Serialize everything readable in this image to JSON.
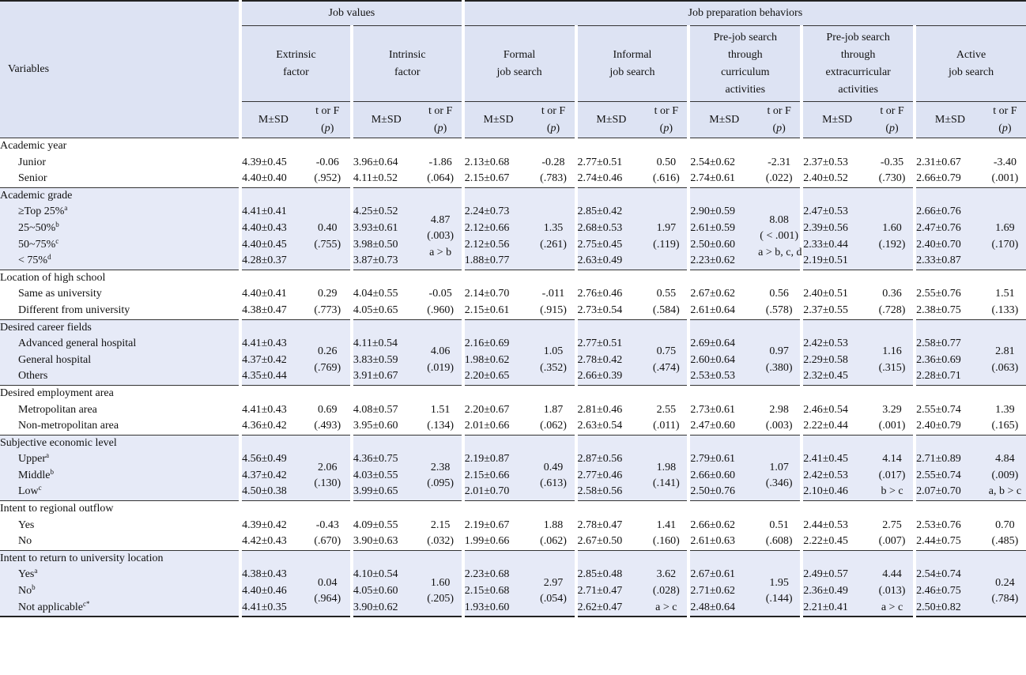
{
  "header": {
    "variables_label": "Variables",
    "group_job_values": "Job values",
    "group_job_prep": "Job preparation behaviors",
    "columns": [
      {
        "id": "extrinsic",
        "lines": [
          "Extrinsic",
          "factor"
        ]
      },
      {
        "id": "intrinsic",
        "lines": [
          "Intrinsic",
          "factor"
        ]
      },
      {
        "id": "formal",
        "lines": [
          "Formal",
          "job search"
        ]
      },
      {
        "id": "informal",
        "lines": [
          "Informal",
          "job search"
        ]
      },
      {
        "id": "prejob_curr",
        "lines": [
          "Pre-job search",
          "through",
          "curriculum",
          "activities"
        ]
      },
      {
        "id": "prejob_extra",
        "lines": [
          "Pre-job search",
          "through",
          "extracurricular",
          "activities"
        ]
      },
      {
        "id": "active",
        "lines": [
          "Active",
          "job search"
        ]
      }
    ],
    "msd_label": "M±SD",
    "tf_label": "t or F",
    "p_open": "(",
    "p_label": "p",
    "p_close": ")"
  },
  "groups": [
    {
      "title": "Academic year",
      "items": [
        "Junior",
        "Senior"
      ],
      "sups": [
        "",
        ""
      ],
      "cols": [
        {
          "msd": [
            "4.39±0.45",
            "4.40±0.40"
          ],
          "tf": [
            "-0.06",
            "(.952)"
          ]
        },
        {
          "msd": [
            "3.96±0.64",
            "4.11±0.52"
          ],
          "tf": [
            "-1.86",
            "(.064)"
          ]
        },
        {
          "msd": [
            "2.13±0.68",
            "2.15±0.67"
          ],
          "tf": [
            "-0.28",
            "(.783)"
          ]
        },
        {
          "msd": [
            "2.77±0.51",
            "2.74±0.46"
          ],
          "tf": [
            "0.50",
            "(.616)"
          ]
        },
        {
          "msd": [
            "2.54±0.62",
            "2.74±0.61"
          ],
          "tf": [
            "-2.31",
            "(.022)"
          ]
        },
        {
          "msd": [
            "2.37±0.53",
            "2.40±0.52"
          ],
          "tf": [
            "-0.35",
            "(.730)"
          ]
        },
        {
          "msd": [
            "2.31±0.67",
            "2.66±0.79"
          ],
          "tf": [
            "-3.40",
            "(.001)"
          ]
        }
      ]
    },
    {
      "title": "Academic grade",
      "items": [
        "≥Top 25%",
        "25~50%",
        "50~75%",
        "< 75%"
      ],
      "sups": [
        "a",
        "b",
        "c",
        "d"
      ],
      "cols": [
        {
          "msd": [
            "4.41±0.41",
            "4.40±0.43",
            "4.40±0.45",
            "4.28±0.37"
          ],
          "tf": [
            "0.40",
            "(.755)"
          ]
        },
        {
          "msd": [
            "4.25±0.52",
            "3.93±0.61",
            "3.98±0.50",
            "3.87±0.73"
          ],
          "tf": [
            "4.87",
            "(.003)",
            "a > b"
          ]
        },
        {
          "msd": [
            "2.24±0.73",
            "2.12±0.66",
            "2.12±0.56",
            "1.88±0.77"
          ],
          "tf": [
            "1.35",
            "(.261)"
          ]
        },
        {
          "msd": [
            "2.85±0.42",
            "2.68±0.53",
            "2.75±0.45",
            "2.63±0.49"
          ],
          "tf": [
            "1.97",
            "(.119)"
          ]
        },
        {
          "msd": [
            "2.90±0.59",
            "2.61±0.59",
            "2.50±0.60",
            "2.23±0.62"
          ],
          "tf": [
            "8.08",
            "( < .001)",
            "a > b, c, d"
          ]
        },
        {
          "msd": [
            "2.47±0.53",
            "2.39±0.56",
            "2.33±0.44",
            "2.19±0.51"
          ],
          "tf": [
            "1.60",
            "(.192)"
          ]
        },
        {
          "msd": [
            "2.66±0.76",
            "2.47±0.76",
            "2.40±0.70",
            "2.33±0.87"
          ],
          "tf": [
            "1.69",
            "(.170)"
          ]
        }
      ]
    },
    {
      "title": "Location of high school",
      "items": [
        "Same as university",
        "Different from university"
      ],
      "sups": [
        "",
        ""
      ],
      "cols": [
        {
          "msd": [
            "4.40±0.41",
            "4.38±0.47"
          ],
          "tf": [
            "0.29",
            "(.773)"
          ]
        },
        {
          "msd": [
            "4.04±0.55",
            "4.05±0.65"
          ],
          "tf": [
            "-0.05",
            "(.960)"
          ]
        },
        {
          "msd": [
            "2.14±0.70",
            "2.15±0.61"
          ],
          "tf": [
            "-.011",
            "(.915)"
          ]
        },
        {
          "msd": [
            "2.76±0.46",
            "2.73±0.54"
          ],
          "tf": [
            "0.55",
            "(.584)"
          ]
        },
        {
          "msd": [
            "2.67±0.62",
            "2.61±0.64"
          ],
          "tf": [
            "0.56",
            "(.578)"
          ]
        },
        {
          "msd": [
            "2.40±0.51",
            "2.37±0.55"
          ],
          "tf": [
            "0.36",
            "(.728)"
          ]
        },
        {
          "msd": [
            "2.55±0.76",
            "2.38±0.75"
          ],
          "tf": [
            "1.51",
            "(.133)"
          ]
        }
      ]
    },
    {
      "title": "Desired career fields",
      "items": [
        "Advanced general hospital",
        "General hospital",
        "Others"
      ],
      "sups": [
        "",
        "",
        ""
      ],
      "cols": [
        {
          "msd": [
            "4.41±0.43",
            "4.37±0.42",
            "4.35±0.44"
          ],
          "tf": [
            "0.26",
            "(.769)"
          ]
        },
        {
          "msd": [
            "4.11±0.54",
            "3.83±0.59",
            "3.91±0.67"
          ],
          "tf": [
            "4.06",
            "(.019)"
          ]
        },
        {
          "msd": [
            "2.16±0.69",
            "1.98±0.62",
            "2.20±0.65"
          ],
          "tf": [
            "1.05",
            "(.352)"
          ]
        },
        {
          "msd": [
            "2.77±0.51",
            "2.78±0.42",
            "2.66±0.39"
          ],
          "tf": [
            "0.75",
            "(.474)"
          ]
        },
        {
          "msd": [
            "2.69±0.64",
            "2.60±0.64",
            "2.53±0.53"
          ],
          "tf": [
            "0.97",
            "(.380)"
          ]
        },
        {
          "msd": [
            "2.42±0.53",
            "2.29±0.58",
            "2.32±0.45"
          ],
          "tf": [
            "1.16",
            "(.315)"
          ]
        },
        {
          "msd": [
            "2.58±0.77",
            "2.36±0.69",
            "2.28±0.71"
          ],
          "tf": [
            "2.81",
            "(.063)"
          ]
        }
      ]
    },
    {
      "title": "Desired employment area",
      "items": [
        "Metropolitan area",
        "Non-metropolitan area"
      ],
      "sups": [
        "",
        ""
      ],
      "cols": [
        {
          "msd": [
            "4.41±0.43",
            "4.36±0.42"
          ],
          "tf": [
            "0.69",
            "(.493)"
          ]
        },
        {
          "msd": [
            "4.08±0.57",
            "3.95±0.60"
          ],
          "tf": [
            "1.51",
            "(.134)"
          ]
        },
        {
          "msd": [
            "2.20±0.67",
            "2.01±0.66"
          ],
          "tf": [
            "1.87",
            "(.062)"
          ]
        },
        {
          "msd": [
            "2.81±0.46",
            "2.63±0.54"
          ],
          "tf": [
            "2.55",
            "(.011)"
          ]
        },
        {
          "msd": [
            "2.73±0.61",
            "2.47±0.60"
          ],
          "tf": [
            "2.98",
            "(.003)"
          ]
        },
        {
          "msd": [
            "2.46±0.54",
            "2.22±0.44"
          ],
          "tf": [
            "3.29",
            "(.001)"
          ]
        },
        {
          "msd": [
            "2.55±0.74",
            "2.40±0.79"
          ],
          "tf": [
            "1.39",
            "(.165)"
          ]
        }
      ]
    },
    {
      "title": "Subjective economic level",
      "items": [
        "Upper",
        "Middle",
        "Low"
      ],
      "sups": [
        "a",
        "b",
        "c"
      ],
      "cols": [
        {
          "msd": [
            "4.56±0.49",
            "4.37±0.42",
            "4.50±0.38"
          ],
          "tf": [
            "2.06",
            "(.130)"
          ]
        },
        {
          "msd": [
            "4.36±0.75",
            "4.03±0.55",
            "3.99±0.65"
          ],
          "tf": [
            "2.38",
            "(.095)"
          ]
        },
        {
          "msd": [
            "2.19±0.87",
            "2.15±0.66",
            "2.01±0.70"
          ],
          "tf": [
            "0.49",
            "(.613)"
          ]
        },
        {
          "msd": [
            "2.87±0.56",
            "2.77±0.46",
            "2.58±0.56"
          ],
          "tf": [
            "1.98",
            "(.141)"
          ]
        },
        {
          "msd": [
            "2.79±0.61",
            "2.66±0.60",
            "2.50±0.76"
          ],
          "tf": [
            "1.07",
            "(.346)"
          ]
        },
        {
          "msd": [
            "2.41±0.45",
            "2.42±0.53",
            "2.10±0.46"
          ],
          "tf": [
            "4.14",
            "(.017)",
            "b > c"
          ]
        },
        {
          "msd": [
            "2.71±0.89",
            "2.55±0.74",
            "2.07±0.70"
          ],
          "tf": [
            "4.84",
            "(.009)",
            "a, b > c"
          ]
        }
      ]
    },
    {
      "title": "Intent to regional outflow",
      "items": [
        "Yes",
        "No"
      ],
      "sups": [
        "",
        ""
      ],
      "cols": [
        {
          "msd": [
            "4.39±0.42",
            "4.42±0.43"
          ],
          "tf": [
            "-0.43",
            "(.670)"
          ]
        },
        {
          "msd": [
            "4.09±0.55",
            "3.90±0.63"
          ],
          "tf": [
            "2.15",
            "(.032)"
          ]
        },
        {
          "msd": [
            "2.19±0.67",
            "1.99±0.66"
          ],
          "tf": [
            "1.88",
            "(.062)"
          ]
        },
        {
          "msd": [
            "2.78±0.47",
            "2.67±0.50"
          ],
          "tf": [
            "1.41",
            "(.160)"
          ]
        },
        {
          "msd": [
            "2.66±0.62",
            "2.61±0.63"
          ],
          "tf": [
            "0.51",
            "(.608)"
          ]
        },
        {
          "msd": [
            "2.44±0.53",
            "2.22±0.45"
          ],
          "tf": [
            "2.75",
            "(.007)"
          ]
        },
        {
          "msd": [
            "2.53±0.76",
            "2.44±0.75"
          ],
          "tf": [
            "0.70",
            "(.485)"
          ]
        }
      ]
    },
    {
      "title": "Intent to return to university location",
      "items": [
        "Yes",
        "No",
        "Not applicable"
      ],
      "sups": [
        "a",
        "b",
        "c*"
      ],
      "cols": [
        {
          "msd": [
            "4.38±0.43",
            "4.40±0.46",
            "4.41±0.35"
          ],
          "tf": [
            "0.04",
            "(.964)"
          ]
        },
        {
          "msd": [
            "4.10±0.54",
            "4.05±0.60",
            "3.90±0.62"
          ],
          "tf": [
            "1.60",
            "(.205)"
          ]
        },
        {
          "msd": [
            "2.23±0.68",
            "2.15±0.68",
            "1.93±0.60"
          ],
          "tf": [
            "2.97",
            "(.054)"
          ]
        },
        {
          "msd": [
            "2.85±0.48",
            "2.71±0.47",
            "2.62±0.47"
          ],
          "tf": [
            "3.62",
            "(.028)",
            "a > c"
          ]
        },
        {
          "msd": [
            "2.67±0.61",
            "2.71±0.62",
            "2.48±0.64"
          ],
          "tf": [
            "1.95",
            "(.144)"
          ]
        },
        {
          "msd": [
            "2.49±0.57",
            "2.36±0.49",
            "2.21±0.41"
          ],
          "tf": [
            "4.44",
            "(.013)",
            "a > c"
          ]
        },
        {
          "msd": [
            "2.54±0.74",
            "2.46±0.75",
            "2.50±0.82"
          ],
          "tf": [
            "0.24",
            "(.784)"
          ]
        }
      ]
    }
  ]
}
